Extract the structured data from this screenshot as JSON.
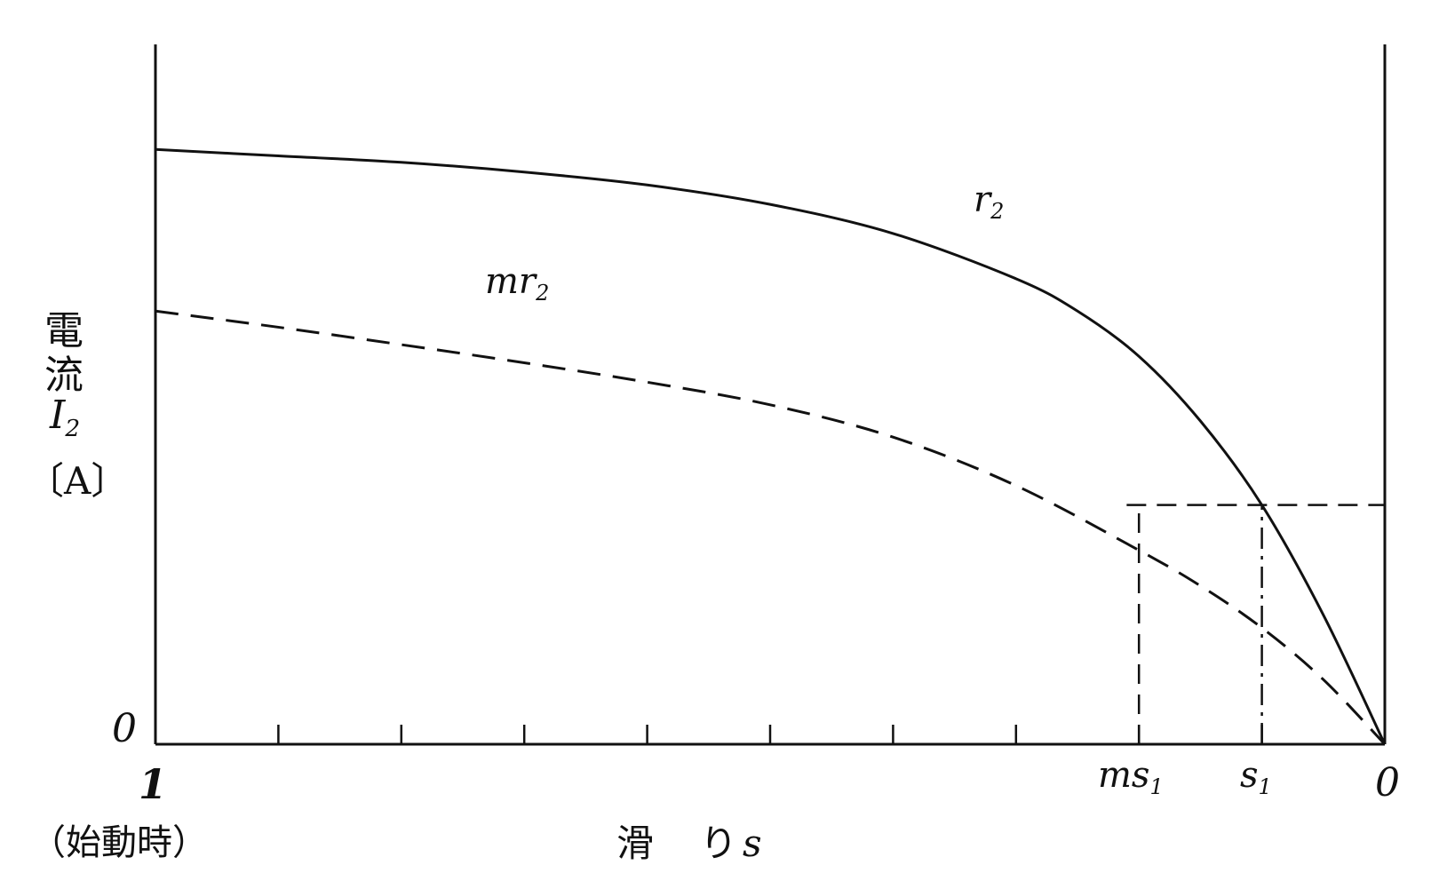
{
  "colors": {
    "ink": "#111111",
    "background": "#ffffff"
  },
  "y_axis": {
    "label_line1": "電",
    "label_line2": "流",
    "symbol": "I",
    "symbol_sub": "2",
    "unit": "〔A〕",
    "origin_label": "0"
  },
  "x_axis": {
    "left_label": "1",
    "left_note": "（始動時）",
    "right_label": "0",
    "title_char1": "滑",
    "title_char2": "り",
    "title_var": "s",
    "tick_count": 10,
    "markers": [
      {
        "name": "ms",
        "sub": "1"
      },
      {
        "name": "s",
        "sub": "1"
      }
    ]
  },
  "chart_data": {
    "type": "line",
    "xlabel": "滑り s",
    "ylabel": "電流 I2〔A〕",
    "x_reversed": true,
    "xlim": [
      1,
      0
    ],
    "ylim": [
      0,
      1
    ],
    "grid": false,
    "series": [
      {
        "name": "r2",
        "label_base": "r",
        "label_sub": "2",
        "style": "solid",
        "x": [
          1.0,
          0.9,
          0.8,
          0.7,
          0.6,
          0.5,
          0.4,
          0.3,
          0.25,
          0.2,
          0.15,
          0.1,
          0.05,
          0.0
        ],
        "y": [
          0.92,
          0.91,
          0.9,
          0.885,
          0.865,
          0.835,
          0.79,
          0.72,
          0.67,
          0.6,
          0.5,
          0.37,
          0.2,
          0.0
        ]
      },
      {
        "name": "mr2",
        "label_base": "mr",
        "label_sub": "2",
        "style": "dashed",
        "x": [
          1.0,
          0.9,
          0.8,
          0.7,
          0.6,
          0.5,
          0.4,
          0.3,
          0.2,
          0.15,
          0.1,
          0.05,
          0.0
        ],
        "y": [
          0.67,
          0.645,
          0.618,
          0.59,
          0.56,
          0.525,
          0.475,
          0.4,
          0.3,
          0.245,
          0.18,
          0.1,
          0.0
        ]
      }
    ],
    "annotations": [
      {
        "type": "hline",
        "y": 0.37,
        "x_from": 0.21,
        "x_to": 0.0,
        "style": "dashed"
      },
      {
        "type": "vline",
        "x": 0.2,
        "y_from": 0.0,
        "y_to": 0.37,
        "style": "dashed",
        "label": "ms1"
      },
      {
        "type": "vline",
        "x": 0.1,
        "y_from": 0.0,
        "y_to": 0.37,
        "style": "dashdot",
        "label": "s1"
      }
    ]
  }
}
